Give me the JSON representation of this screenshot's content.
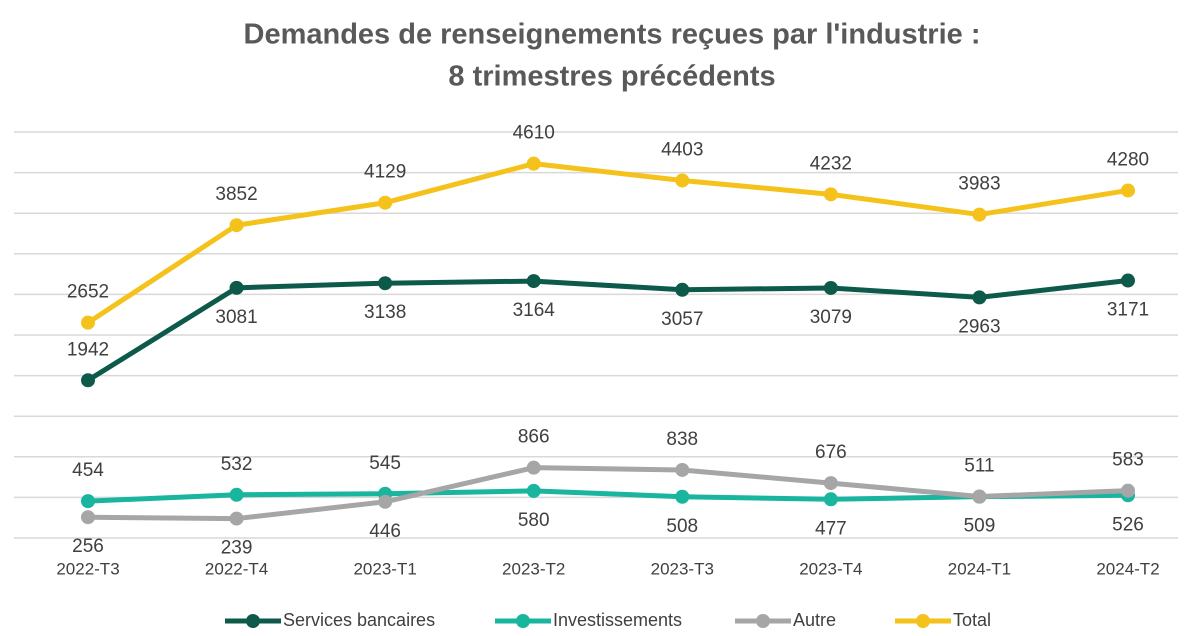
{
  "chart_data": {
    "type": "line",
    "title": [
      "Demandes de renseignements reçues par l'industrie :",
      "8 trimestres précédents"
    ],
    "categories": [
      "2022-T3",
      "2022-T4",
      "2023-T1",
      "2023-T2",
      "2023-T3",
      "2023-T4",
      "2024-T1",
      "2024-T2"
    ],
    "series": [
      {
        "name": "Services bancaires",
        "color": "#0e5a4a",
        "values": [
          1942,
          3081,
          3138,
          3164,
          3057,
          3079,
          2963,
          3171
        ]
      },
      {
        "name": "Investissements",
        "color": "#19b59e",
        "values": [
          454,
          532,
          545,
          580,
          508,
          477,
          509,
          526
        ]
      },
      {
        "name": "Autre",
        "color": "#a6a6a6",
        "values": [
          256,
          239,
          446,
          866,
          838,
          676,
          511,
          583
        ]
      },
      {
        "name": "Total",
        "color": "#f4c21a",
        "values": [
          2652,
          3852,
          4129,
          4610,
          4403,
          4232,
          3983,
          4280
        ]
      }
    ],
    "ylim": [
      0,
      5000
    ],
    "yticks": [
      0,
      500,
      1000,
      1500,
      2000,
      2500,
      3000,
      3500,
      4000,
      4500,
      5000
    ],
    "grid": true,
    "legend": "bottom"
  }
}
